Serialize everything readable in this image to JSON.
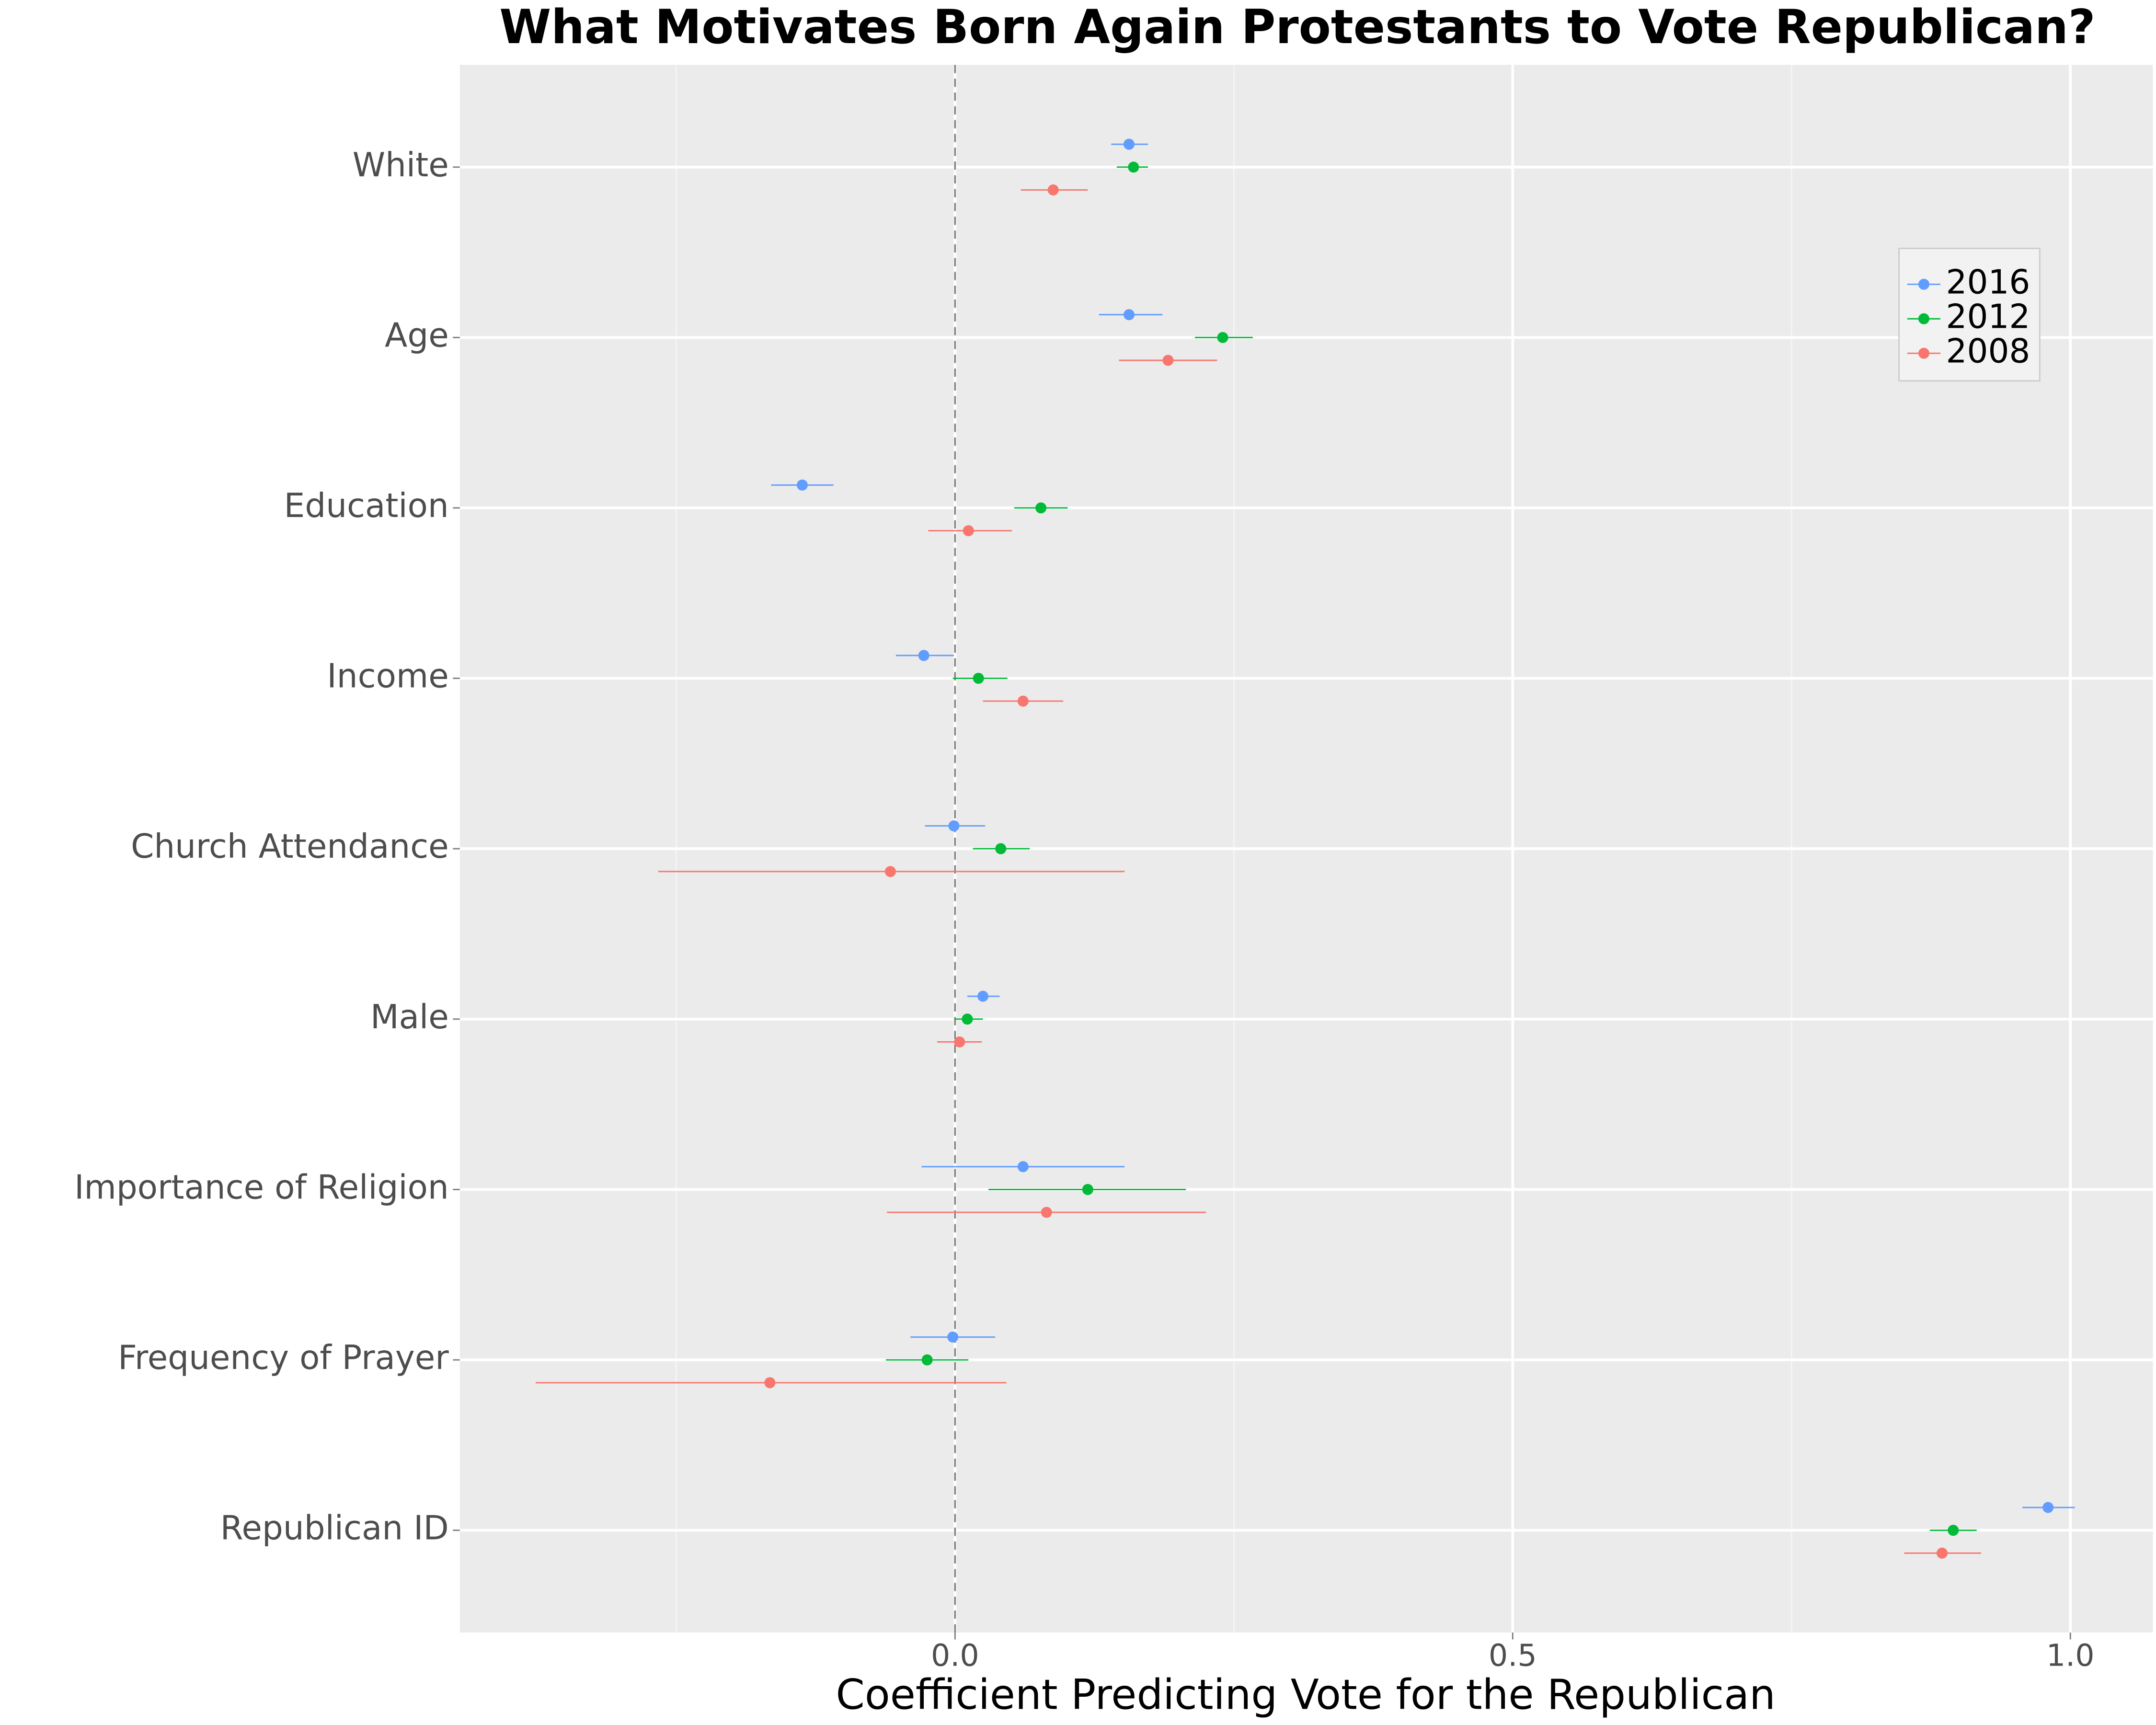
{
  "chart_data": {
    "type": "coefplot",
    "title": "What Motivates Born Again Protestants to Vote Republican?",
    "x_label": "Coefficient Predicting Vote for the Republican",
    "categories": [
      "White",
      "Age",
      "Education",
      "Income",
      "Church Attendance",
      "Male",
      "Importance of Religion",
      "Frequency of Prayer",
      "Republican ID"
    ],
    "series": [
      {
        "name": "2016",
        "color": "#619CFF",
        "values": [
          0.156,
          0.156,
          -0.137,
          -0.028,
          -0.001,
          0.025,
          0.061,
          -0.002,
          0.98
        ],
        "lower": [
          0.14,
          0.129,
          -0.165,
          -0.053,
          -0.027,
          0.011,
          -0.03,
          -0.04,
          0.957
        ],
        "upper": [
          0.173,
          0.186,
          -0.109,
          -0.001,
          0.027,
          0.04,
          0.152,
          0.036,
          1.004
        ]
      },
      {
        "name": "2012",
        "color": "#00BA38",
        "values": [
          0.16,
          0.24,
          0.077,
          0.021,
          0.041,
          0.011,
          0.119,
          -0.025,
          0.895
        ],
        "lower": [
          0.145,
          0.215,
          0.053,
          -0.002,
          0.016,
          0,
          0.03,
          -0.062,
          0.874
        ],
        "upper": [
          0.173,
          0.267,
          0.101,
          0.047,
          0.067,
          0.025,
          0.207,
          0.012,
          0.916
        ]
      },
      {
        "name": "2008",
        "color": "#F8766D",
        "values": [
          0.088,
          0.191,
          0.012,
          0.061,
          -0.058,
          0.004,
          0.082,
          -0.166,
          0.885
        ],
        "lower": [
          0.059,
          0.147,
          -0.024,
          0.025,
          -0.266,
          -0.016,
          -0.061,
          -0.376,
          0.851
        ],
        "upper": [
          0.119,
          0.235,
          0.051,
          0.097,
          0.152,
          0.024,
          0.225,
          0.046,
          0.92
        ]
      }
    ],
    "xlim": [
      -0.444,
      1.074
    ],
    "xticks": [
      {
        "value": 0,
        "label": "0.0"
      },
      0.5,
      {
        "value": 1,
        "label": "1.0"
      }
    ],
    "minor_xticks": [
      -0.25,
      0.25,
      0.75
    ],
    "reference_line": 0,
    "grid": true,
    "legend_position": "top-right"
  }
}
